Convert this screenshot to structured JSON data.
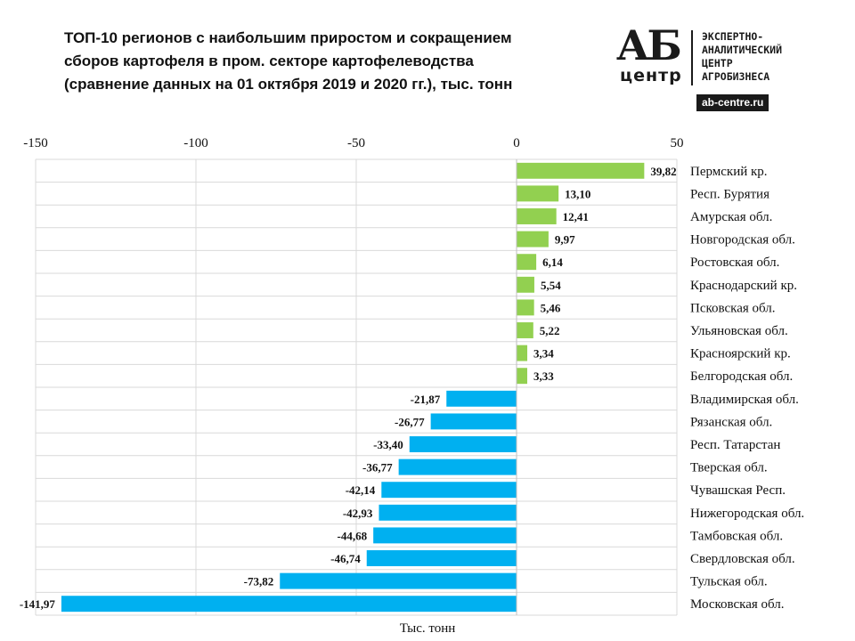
{
  "title": {
    "line1": "ТОП-10 регионов  с наибольшим  приростом и сокращением",
    "line2": "сборов картофеля в пром. секторе картофелеводства",
    "line3": "(сравнение данных  на 01 октября  2019 и 2020 гг.), тыс. тонн"
  },
  "logo": {
    "mark_top": "АБ",
    "mark_bottom": "центр",
    "org_line1": "ЭКСПЕРТНО-",
    "org_line2": "АНАЛИТИЧЕСКИЙ",
    "org_line3": "ЦЕНТР",
    "org_line4": "АГРОБИЗНЕСА",
    "url": "ab-centre.ru"
  },
  "chart_data": {
    "type": "bar",
    "orientation": "horizontal",
    "categories": [
      "Пермский кр.",
      "Респ. Бурятия",
      "Амурская обл.",
      "Новгородская обл.",
      "Ростовская обл.",
      "Краснодарский кр.",
      "Псковская обл.",
      "Ульяновская обл.",
      "Красноярский кр.",
      "Белгородская обл.",
      "Владимирская обл.",
      "Рязанская обл.",
      "Респ. Татарстан",
      "Тверская обл.",
      "Чувашская Респ.",
      "Нижегородская обл.",
      "Тамбовская обл.",
      "Свердловская обл.",
      "Тульская обл.",
      "Московская обл."
    ],
    "values": [
      39.82,
      13.1,
      12.41,
      9.97,
      6.14,
      5.54,
      5.46,
      5.22,
      3.34,
      3.33,
      -21.87,
      -26.77,
      -33.4,
      -36.77,
      -42.14,
      -42.93,
      -44.68,
      -46.74,
      -73.82,
      -141.97
    ],
    "value_labels": [
      "39,82",
      "13,10",
      "12,41",
      "9,97",
      "6,14",
      "5,54",
      "5,46",
      "5,22",
      "3,34",
      "3,33",
      "-21,87",
      "-26,77",
      "-33,40",
      "-36,77",
      "-42,14",
      "-42,93",
      "-44,68",
      "-46,74",
      "-73,82",
      "-141,97"
    ],
    "x_ticks": [
      -150,
      -100,
      -50,
      0,
      50
    ],
    "x_tick_labels": [
      "-150",
      "-100",
      "-50",
      "0",
      "50"
    ],
    "xlim": [
      -150,
      50
    ],
    "xlabel": "Тыс. тонн",
    "positive_color": "#92d050",
    "negative_color": "#00b0f0",
    "grid": true,
    "axis_position": "top"
  }
}
